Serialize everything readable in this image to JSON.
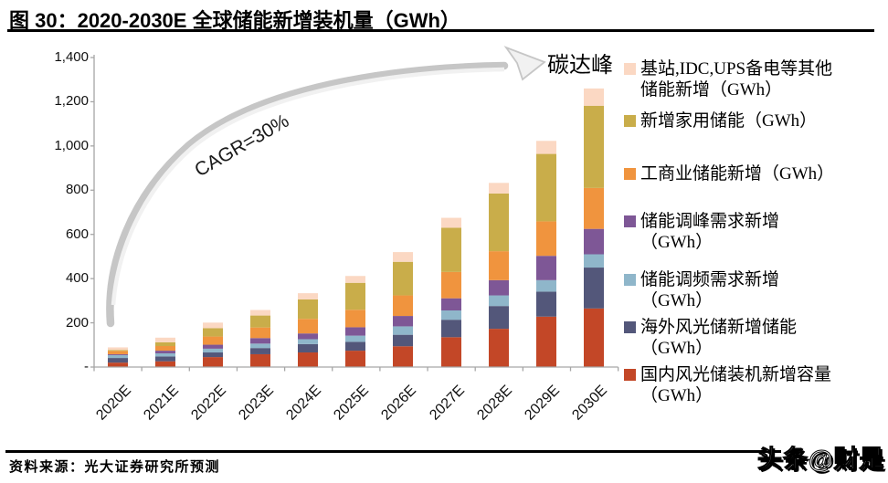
{
  "title": "图 30：2020-2030E 全球储能新增装机量（GWh）",
  "source": "资料来源：光大证券研究所预测",
  "watermark": "头条@财是",
  "annotations": {
    "cagr": "CAGR=30%",
    "peak": "碳达峰"
  },
  "chart_data": {
    "type": "bar",
    "stacked": true,
    "title": "2020-2030E 全球储能新增装机量（GWh）",
    "xlabel": "",
    "ylabel": "",
    "ylim": [
      0,
      1400
    ],
    "y_tick_step": 200,
    "y_tick_labels": [
      "1,400",
      "1,200",
      "1,000",
      "800",
      "600",
      "400",
      "200",
      "-"
    ],
    "grid": false,
    "legend_position": "right",
    "categories": [
      "2020E",
      "2021E",
      "2022E",
      "2023E",
      "2024E",
      "2025E",
      "2026E",
      "2027E",
      "2028E",
      "2029E",
      "2030E"
    ],
    "series": [
      {
        "name": "国内风光储装机新增容量（GWh）",
        "color": "#C34727",
        "values": [
          20,
          26,
          45,
          58,
          66,
          74,
          94,
          135,
          173,
          228,
          265
        ]
      },
      {
        "name": "海外风光储新增储能（GWh）",
        "color": "#53577A",
        "values": [
          21,
          22,
          21,
          28,
          38,
          40,
          52,
          79,
          103,
          113,
          185
        ]
      },
      {
        "name": "储能调频需求新增（GWh）",
        "color": "#8FB6CA",
        "values": [
          13,
          14,
          17,
          20,
          22,
          28,
          38,
          42,
          48,
          52,
          60
        ]
      },
      {
        "name": "储能调峰需求新增（GWh）",
        "color": "#7E5796",
        "values": [
          4,
          12,
          18,
          25,
          26,
          38,
          47,
          55,
          69,
          110,
          115
        ]
      },
      {
        "name": "工商业储能新增（GWh）",
        "color": "#F0943E",
        "values": [
          15,
          21,
          37,
          48,
          66,
          79,
          93,
          119,
          131,
          156,
          185
        ]
      },
      {
        "name": "新增家用储能（GWh）",
        "color": "#C9AD4A",
        "values": [
          4,
          17,
          38,
          54,
          88,
          122,
          152,
          200,
          261,
          305,
          372
        ]
      },
      {
        "name": "基站,IDC,UPS备电等其他储能新增（GWh）",
        "color": "#FBD8C3",
        "values": [
          12,
          21,
          25,
          25,
          28,
          31,
          44,
          45,
          48,
          59,
          78
        ]
      }
    ],
    "totals": [
      89,
      133,
      201,
      258,
      334,
      412,
      520,
      675,
      833,
      1023,
      1260
    ]
  },
  "legend": {
    "items": [
      {
        "line1": "基站,IDC,UPS备电等其他",
        "line2": "储能新增（GWh）",
        "color": "#FBD8C3"
      },
      {
        "line1": "新增家用储能（GWh）",
        "line2": "",
        "color": "#C9AD4A"
      },
      {
        "line1": "工商业储能新增（GWh）",
        "line2": "",
        "color": "#F0943E"
      },
      {
        "line1": "储能调峰需求新增",
        "line2": "（GWh）",
        "color": "#7E5796"
      },
      {
        "line1": "储能调频需求新增",
        "line2": "（GWh）",
        "color": "#8FB6CA"
      },
      {
        "line1": "海外风光储新增储能",
        "line2": "（GWh）",
        "color": "#53577A"
      },
      {
        "line1": "国内风光储装机新增容量",
        "line2": "（GWh）",
        "color": "#C34727"
      }
    ]
  },
  "axis_color": "#A6A6A6",
  "arrow_color": "#C6C6C6"
}
